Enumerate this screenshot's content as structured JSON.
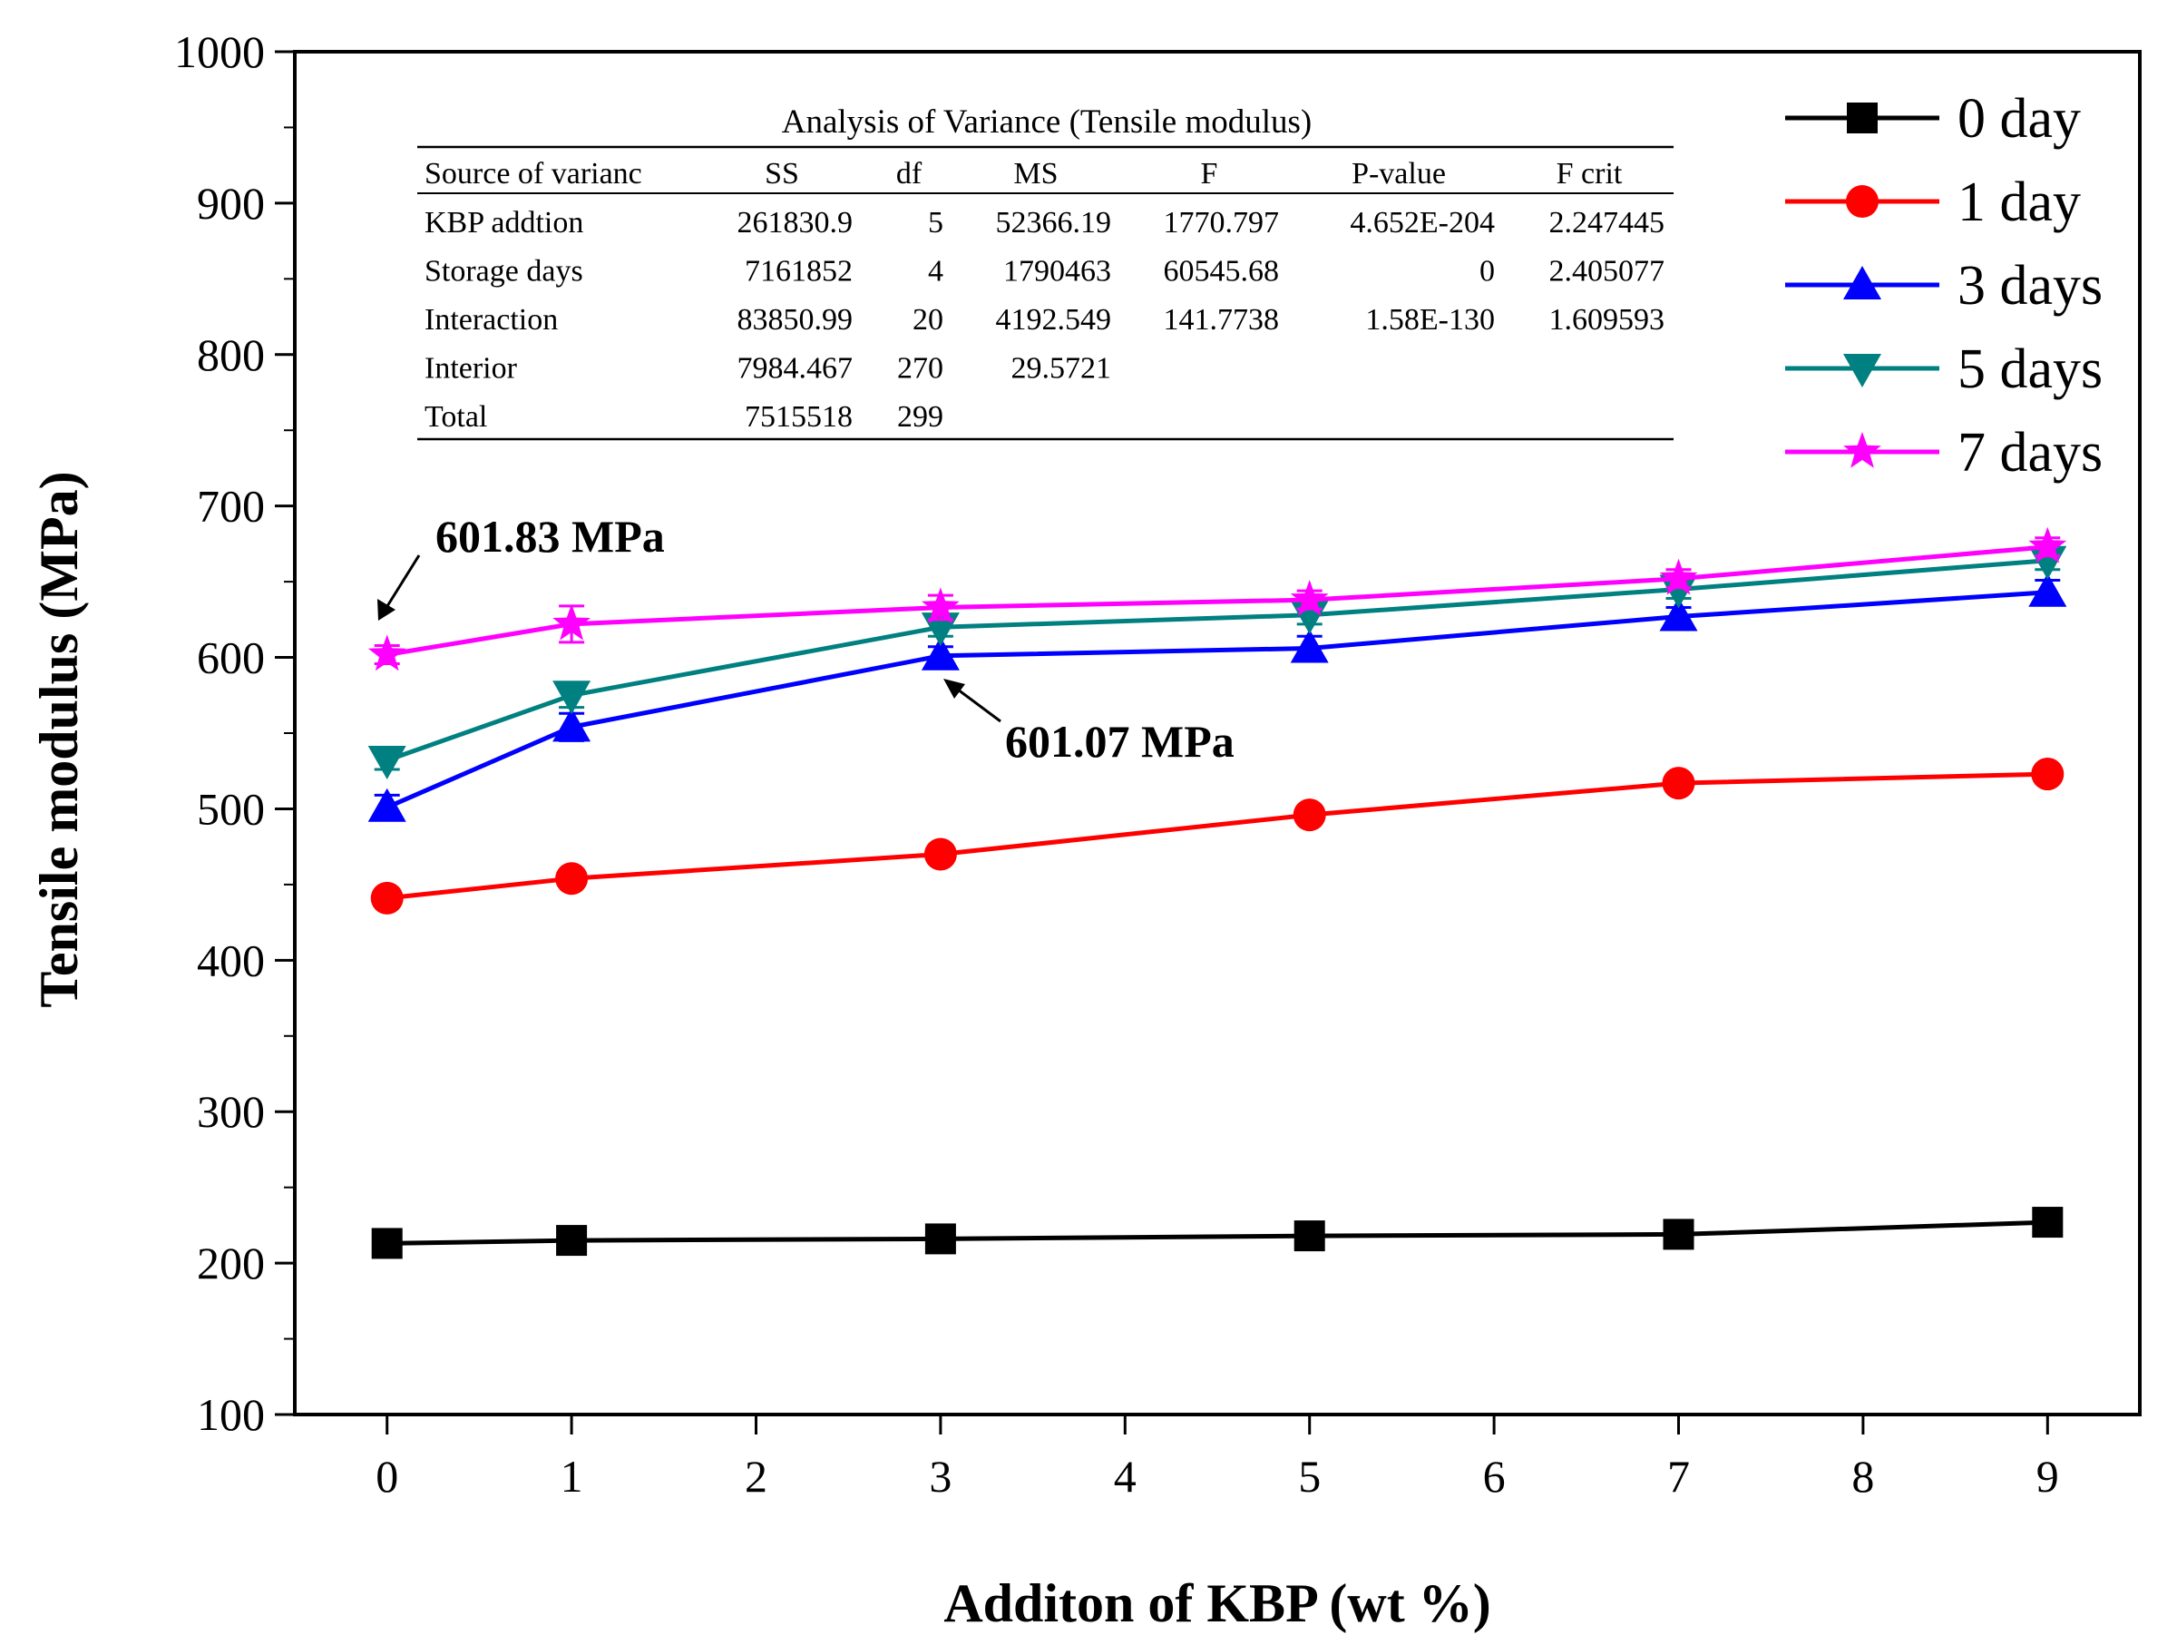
{
  "chart_data": {
    "type": "line",
    "xlabel": "Additon of KBP (wt %)",
    "ylabel": "Tensile modulus (MPa)",
    "xlim": [
      -0.5,
      9.5
    ],
    "ylim": [
      100,
      1000
    ],
    "xticks": [
      0,
      1,
      2,
      3,
      4,
      5,
      6,
      7,
      8,
      9
    ],
    "yticks": [
      100,
      200,
      300,
      400,
      500,
      600,
      700,
      800,
      900,
      1000
    ],
    "grid": false,
    "legend_position": "top-right",
    "x": [
      0,
      1,
      3,
      5,
      7,
      9
    ],
    "series": [
      {
        "name": "0 day",
        "color": "#000000",
        "marker": "square",
        "values": [
          213,
          215,
          216,
          218,
          219,
          227
        ],
        "errors": [
          6,
          5,
          6,
          5,
          4,
          4
        ]
      },
      {
        "name": "1 day",
        "color": "#ff0000",
        "marker": "circle",
        "values": [
          441,
          454,
          470,
          496,
          517,
          523
        ],
        "errors": [
          5,
          5,
          6,
          5,
          5,
          6
        ]
      },
      {
        "name": "3 days",
        "color": "#0000ff",
        "marker": "triangle-up",
        "values": [
          501,
          554,
          601.07,
          606,
          627,
          643
        ],
        "errors": [
          8,
          9,
          6,
          8,
          6,
          8
        ]
      },
      {
        "name": "5 days",
        "color": "#008080",
        "marker": "triangle-down",
        "values": [
          532,
          575,
          620,
          628,
          645,
          664
        ],
        "errors": [
          6,
          8,
          6,
          6,
          6,
          6
        ]
      },
      {
        "name": "7 days",
        "color": "#ff00ff",
        "marker": "star",
        "values": [
          601.83,
          622,
          633,
          638,
          652,
          673
        ],
        "errors": [
          6,
          12,
          8,
          6,
          6,
          6
        ]
      }
    ],
    "annotations": [
      {
        "text": "601.83 MPa",
        "x": 0,
        "y": 601.83
      },
      {
        "text": "601.07 MPa",
        "x": 3,
        "y": 601.07
      }
    ],
    "anova_table": {
      "title": "Analysis of Variance (Tensile modulus)",
      "columns": [
        "Source of varianc",
        "SS",
        "df",
        "MS",
        "F",
        "P-value",
        "F crit"
      ],
      "rows": [
        [
          "KBP addtion",
          "261830.9",
          "5",
          "52366.19",
          "1770.797",
          "4.652E-204",
          "2.247445"
        ],
        [
          "Storage days",
          "7161852",
          "4",
          "1790463",
          "60545.68",
          "0",
          "2.405077"
        ],
        [
          "Interaction",
          "83850.99",
          "20",
          "4192.549",
          "141.7738",
          "1.58E-130",
          "1.609593"
        ],
        [
          "Interior",
          "7984.467",
          "270",
          "29.5721",
          "",
          "",
          ""
        ],
        [
          "Total",
          "7515518",
          "299",
          "",
          "",
          "",
          ""
        ]
      ]
    }
  }
}
